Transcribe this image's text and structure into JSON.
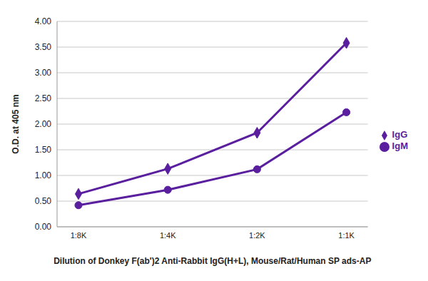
{
  "chart_data": {
    "type": "line",
    "categories": [
      "1:8K",
      "1:4K",
      "1:2K",
      "1:1K"
    ],
    "x_label": "Dilution of Donkey F(ab')2 Anti-Rabbit IgG(H+L), Mouse/Rat/Human SP ads-AP",
    "y_label": "O.D. at 405 nm",
    "series": [
      {
        "name": "IgG",
        "color": "#5a1f9e",
        "marker": "diamond",
        "values": [
          0.64,
          1.13,
          1.83,
          3.58
        ]
      },
      {
        "name": "IgM",
        "color": "#5a1f9e",
        "marker": "circle",
        "values": [
          0.42,
          0.72,
          1.12,
          2.23
        ]
      }
    ],
    "ylim": [
      0,
      4
    ],
    "yticks": [
      {
        "value": 0,
        "label": "0.00"
      },
      {
        "value": 0.5,
        "label": "0.50"
      },
      {
        "value": 1,
        "label": "1.00"
      },
      {
        "value": 1.5,
        "label": "1.50"
      },
      {
        "value": 2,
        "label": "2.00"
      },
      {
        "value": 2.5,
        "label": "2.50"
      },
      {
        "value": 3,
        "label": "3.00"
      },
      {
        "value": 3.5,
        "label": "3.50"
      },
      {
        "value": 4,
        "label": "4.00"
      }
    ],
    "grid": true,
    "legend": "right"
  }
}
